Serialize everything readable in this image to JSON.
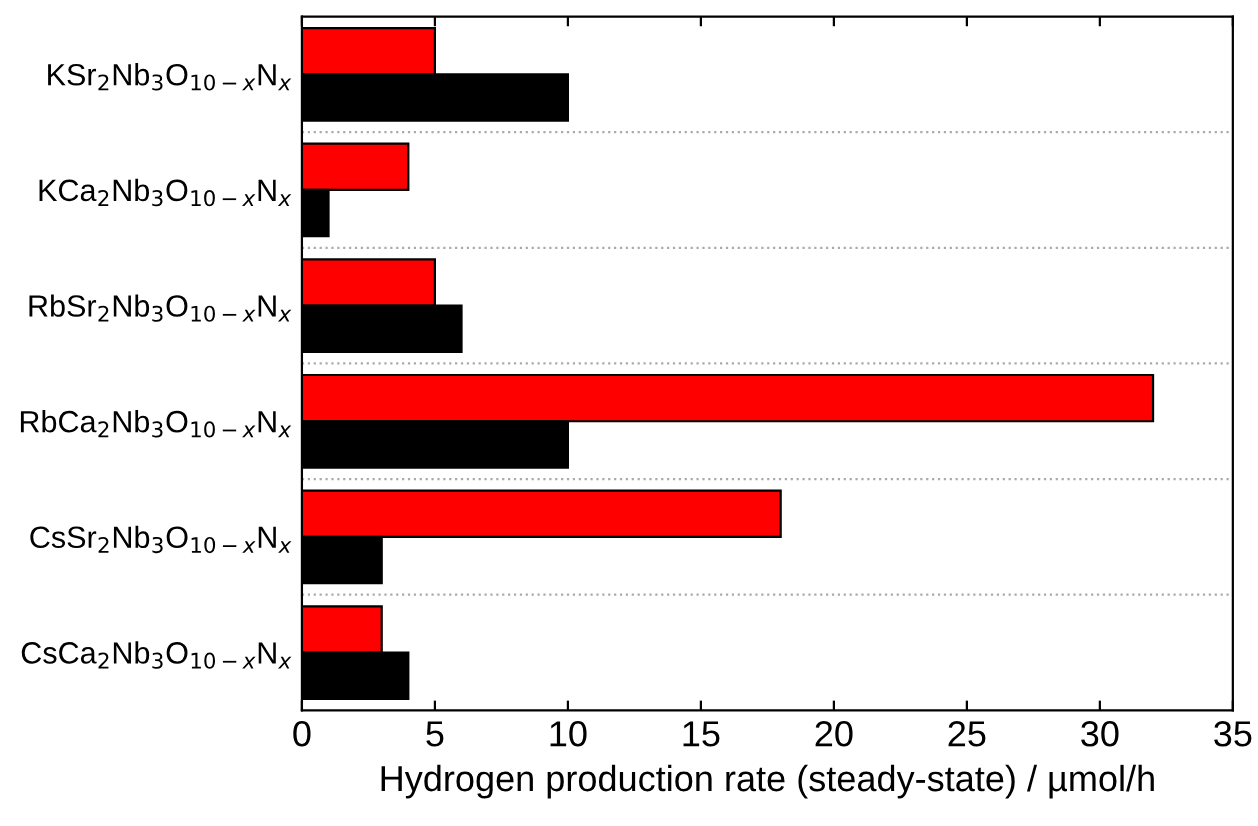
{
  "chart_data": {
    "type": "bar",
    "orientation": "horizontal",
    "xlabel": "Hydrogen production rate (steady-state) / µmol/h",
    "categories": [
      "KSr$_{2}$Nb$_{3}$O$_{10−x}$N$_{x}$",
      "KCa$_{2}$Nb$_{3}$O$_{10−x}$N$_{x}$",
      "RbSr$_{2}$Nb$_{3}$O$_{10−x}$N$_{x}$",
      "RbCa$_{2}$Nb$_{3}$O$_{10−x}$N$_{x}$",
      "CsSr$_{2}$Nb$_{3}$O$_{10−x}$N$_{x}$",
      "CsCa$_{2}$Nb$_{3}$O$_{10−x}$N$_{x}$"
    ],
    "series": [
      {
        "color": "#ff0000",
        "values": [
          5,
          4,
          5,
          32,
          18,
          3
        ]
      },
      {
        "color": "#000000",
        "values": [
          10,
          1,
          6,
          10,
          3,
          4
        ]
      }
    ],
    "xlim": [
      0,
      35
    ],
    "xticks": [
      0,
      5,
      10,
      15,
      20,
      25,
      30,
      35
    ],
    "grid": false,
    "legend": false
  }
}
